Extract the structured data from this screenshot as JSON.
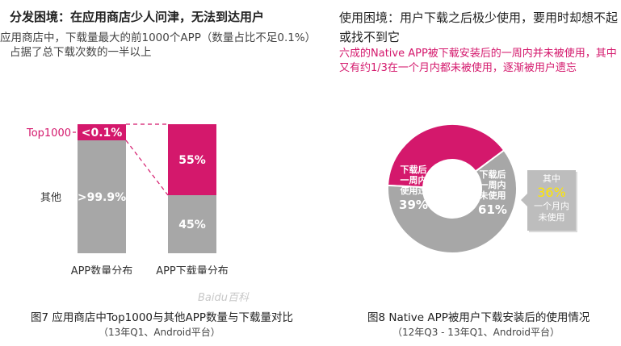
{
  "left_panel": {
    "heading": "分发困境：在应用商店少人问津，无法到达用户",
    "description_line1": "应用商店中，下载量最大的前1000个APP（数量占比不足0.1%）",
    "description_line2": "占据了总下载次数的一半以上",
    "caption": "图7 应用商店中Top1000与其他APP数量与下载量对比",
    "sub_caption": "（13年Q1、Android平台）"
  },
  "right_panel": {
    "heading": "使用困境：用户下载之后极少使用，要用时却想不起或找不到它",
    "description": "六成的Native APP被下载安装后的一周内并未被使用，其中又有约1/3在一个月内都未被使用，逐渐被用户遗忘",
    "caption": "图8 Native APP被用户下载安装后的使用情况",
    "sub_caption": "（12年Q3 - 13年Q1、Android平台）",
    "callout": {
      "line1": "其中",
      "value": "36%",
      "line2": "一个月内",
      "line3": "未使用"
    }
  },
  "watermark": "Baidu百科",
  "colors": {
    "pink": "#d4186c",
    "gray": "#a7a7a7",
    "yellow": "#ffe600",
    "callout_bg": "#bdbdbd"
  },
  "chart_data": [
    {
      "type": "bar",
      "stacked": true,
      "categories": [
        "APP数量分布",
        "APP下载量分布"
      ],
      "series": [
        {
          "name": "Top1000",
          "values": [
            0.1,
            55
          ],
          "labels": [
            "<0.1%",
            "55%"
          ],
          "color": "#d4186c"
        },
        {
          "name": "其他",
          "values": [
            99.9,
            45
          ],
          "labels": [
            ">99.9%",
            "45%"
          ],
          "color": "#a7a7a7"
        }
      ],
      "ylim": [
        0,
        100
      ],
      "legend_labels": [
        "Top1000",
        "其他"
      ],
      "legend_placement": "left"
    },
    {
      "type": "pie",
      "donut": true,
      "slices": [
        {
          "label_lines": [
            "下载后",
            "一周内",
            "使用过"
          ],
          "value": 39,
          "value_label": "39%",
          "color": "#d4186c"
        },
        {
          "label_lines": [
            "下载后",
            "一周内",
            "未使用"
          ],
          "value": 61,
          "value_label": "61%",
          "color": "#a7a7a7"
        }
      ]
    }
  ]
}
